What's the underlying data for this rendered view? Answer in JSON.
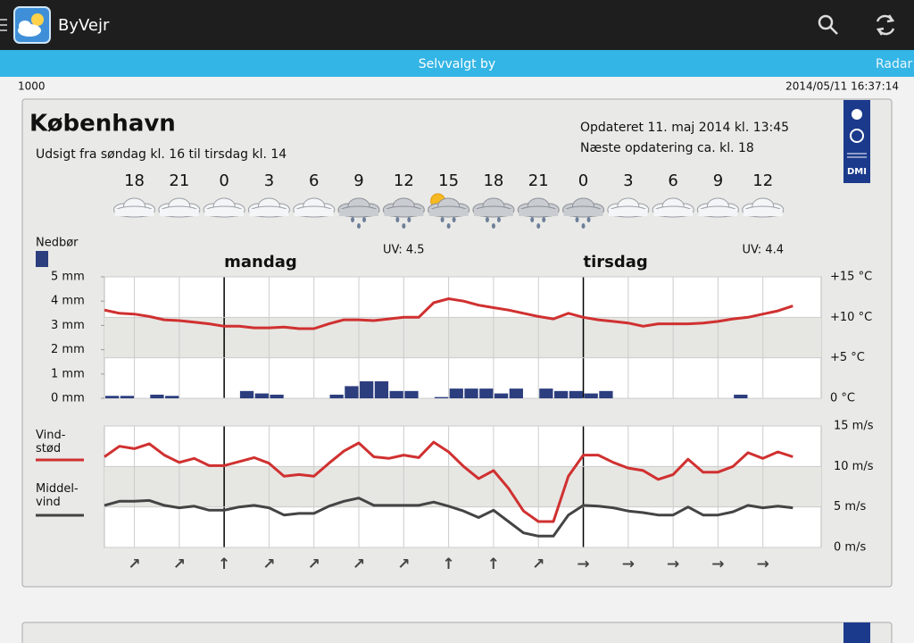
{
  "app_bar": {
    "title": "ByVejr"
  },
  "tab_bar": {
    "title": "Selvvalgt by",
    "radar": "Radar"
  },
  "status": {
    "left": "1000",
    "right": "2014/05/11 16:37:14"
  },
  "card": {
    "city": "København",
    "outlook": "Udsigt fra søndag kl. 16 til tirsdag kl. 14",
    "updated": "Opdateret 11. maj 2014 kl. 13:45",
    "next_update": "Næste opdatering ca. kl. 18",
    "logo": "DMI"
  },
  "chart_data": [
    {
      "type": "combo",
      "hours": [
        18,
        21,
        0,
        3,
        6,
        9,
        12,
        15,
        18,
        21,
        0,
        3,
        6,
        9,
        12
      ],
      "icons": [
        "cloud",
        "cloud",
        "cloud",
        "cloud",
        "cloud",
        "rain",
        "rain",
        "sun-rain",
        "rain",
        "rain",
        "rain",
        "cloud",
        "cloud",
        "cloud",
        "cloud"
      ],
      "uv_labels": [
        "UV: 4.5",
        "UV: 4.4"
      ],
      "day_labels": [
        "mandag",
        "tirsdag"
      ],
      "series": [
        {
          "name": "Nedbør",
          "type": "bar",
          "color": "#2c3e7e",
          "values": [
            0.1,
            0.1,
            0,
            0.15,
            0.1,
            0,
            0,
            0,
            0,
            0.3,
            0.2,
            0.15,
            0,
            0,
            0,
            0.15,
            0.5,
            0.7,
            0.7,
            0.3,
            0.3,
            0,
            0.05,
            0.4,
            0.4,
            0.4,
            0.2,
            0.4,
            0,
            0.4,
            0.3,
            0.3,
            0.2,
            0.3,
            0,
            0,
            0,
            0,
            0,
            0,
            0,
            0,
            0.15,
            0,
            0,
            0
          ]
        },
        {
          "type": "line",
          "color": "#d03030",
          "axis": "y2",
          "values": [
            10.9,
            10.5,
            10.4,
            10.1,
            9.7,
            9.6,
            9.4,
            9.2,
            8.9,
            8.9,
            8.7,
            8.7,
            8.8,
            8.6,
            8.6,
            9.2,
            9.7,
            9.7,
            9.6,
            9.8,
            10.0,
            10.0,
            11.8,
            12.3,
            12.0,
            11.5,
            11.2,
            10.9,
            10.5,
            10.1,
            9.8,
            10.5,
            10.0,
            9.7,
            9.5,
            9.3,
            8.9,
            9.2,
            9.2,
            9.2,
            9.3,
            9.5,
            9.8,
            10.0,
            10.4,
            10.8,
            11.4
          ]
        }
      ],
      "ylim": [
        0,
        5
      ],
      "yticks": [
        {
          "value": 0,
          "label": "0 mm"
        },
        {
          "value": 1,
          "label": "1 mm"
        },
        {
          "value": 2,
          "label": "2 mm"
        },
        {
          "value": 3,
          "label": "3 mm"
        },
        {
          "value": 4,
          "label": "4 mm"
        },
        {
          "value": 5,
          "label": "5 mm"
        }
      ],
      "y2lim": [
        0,
        15
      ],
      "y2ticks": [
        {
          "value": 0,
          "label": "0 °C"
        },
        {
          "value": 5,
          "label": "+5 °C"
        },
        {
          "value": 10,
          "label": "+10 °C"
        },
        {
          "value": 15,
          "label": "+15 °C"
        }
      ],
      "grid": true
    },
    {
      "type": "line",
      "series": [
        {
          "name": "Vind- stød",
          "color": "#d03030",
          "values": [
            11.2,
            12.5,
            12.2,
            12.8,
            11.4,
            10.5,
            11.0,
            10.1,
            10.1,
            10.6,
            11.1,
            10.4,
            8.8,
            9.0,
            8.8,
            10.4,
            11.9,
            12.9,
            11.2,
            11.0,
            11.4,
            11.1,
            13.0,
            11.8,
            10.0,
            8.5,
            9.5,
            7.3,
            4.5,
            3.2,
            3.2,
            8.8,
            11.4,
            11.4,
            10.5,
            9.8,
            9.5,
            8.4,
            9.0,
            10.9,
            9.3,
            9.3,
            10.0,
            11.7,
            11.0,
            11.8,
            11.2
          ]
        },
        {
          "name": "Middel- vind",
          "color": "#444444",
          "values": [
            5.2,
            5.7,
            5.7,
            5.8,
            5.2,
            4.9,
            5.1,
            4.6,
            4.6,
            5.0,
            5.2,
            4.9,
            4.0,
            4.2,
            4.2,
            5.1,
            5.7,
            6.1,
            5.2,
            5.2,
            5.2,
            5.2,
            5.6,
            5.1,
            4.5,
            3.7,
            4.6,
            3.2,
            1.8,
            1.4,
            1.4,
            4.0,
            5.2,
            5.1,
            4.9,
            4.5,
            4.3,
            4.0,
            4.0,
            5.0,
            4.0,
            4.0,
            4.4,
            5.2,
            4.9,
            5.1,
            4.9
          ]
        }
      ],
      "ylim": [
        0,
        15
      ],
      "yticks": [
        {
          "value": 0,
          "label": "0 m/s"
        },
        {
          "value": 5,
          "label": "5 m/s"
        },
        {
          "value": 10,
          "label": "10 m/s"
        },
        {
          "value": 15,
          "label": "15 m/s"
        }
      ],
      "wind_arrows": [
        "↗",
        "↗",
        "↑",
        "↗",
        "↗",
        "↗",
        "↗",
        "↑",
        "↑",
        "↗",
        "→",
        "→",
        "→",
        "→",
        "→"
      ],
      "grid": true
    }
  ]
}
